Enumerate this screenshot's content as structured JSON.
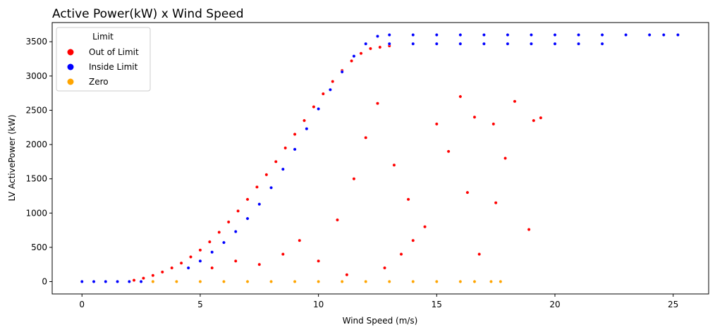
{
  "chart_data": {
    "type": "scatter",
    "title": "Active Power(kW) x Wind Speed",
    "xlabel": "Wind Speed (m/s)",
    "ylabel": "LV ActivePower (kW)",
    "xlim": [
      -1.26,
      26.5
    ],
    "ylim": [
      -180,
      3780
    ],
    "xticks": [
      0,
      5,
      10,
      15,
      20,
      25
    ],
    "yticks": [
      0,
      500,
      1000,
      1500,
      2000,
      2500,
      3000,
      3500
    ],
    "grid": false,
    "legend": {
      "title": "Limit",
      "placement": "top-left",
      "entries": [
        "Out of Limit",
        "Inside Limit",
        "Zero"
      ]
    },
    "series": [
      {
        "name": "Out of Limit",
        "color": "#ff0000",
        "points": [
          [
            2.2,
            20
          ],
          [
            2.6,
            50
          ],
          [
            3.0,
            90
          ],
          [
            3.4,
            140
          ],
          [
            3.8,
            200
          ],
          [
            4.2,
            270
          ],
          [
            4.6,
            360
          ],
          [
            5.0,
            460
          ],
          [
            5.4,
            580
          ],
          [
            5.8,
            720
          ],
          [
            6.2,
            870
          ],
          [
            6.6,
            1030
          ],
          [
            7.0,
            1200
          ],
          [
            7.4,
            1380
          ],
          [
            7.8,
            1560
          ],
          [
            8.2,
            1750
          ],
          [
            8.6,
            1950
          ],
          [
            9.0,
            2150
          ],
          [
            9.4,
            2350
          ],
          [
            9.8,
            2550
          ],
          [
            10.2,
            2740
          ],
          [
            10.6,
            2920
          ],
          [
            11.0,
            3080
          ],
          [
            11.4,
            3220
          ],
          [
            11.8,
            3330
          ],
          [
            12.2,
            3400
          ],
          [
            12.6,
            3420
          ],
          [
            13.0,
            3440
          ],
          [
            5.5,
            200
          ],
          [
            6.5,
            300
          ],
          [
            7.5,
            250
          ],
          [
            8.5,
            400
          ],
          [
            9.2,
            600
          ],
          [
            10.0,
            300
          ],
          [
            10.8,
            900
          ],
          [
            11.5,
            1500
          ],
          [
            12.0,
            2100
          ],
          [
            12.5,
            2600
          ],
          [
            13.2,
            1700
          ],
          [
            13.8,
            1200
          ],
          [
            14.5,
            800
          ],
          [
            15.0,
            2300
          ],
          [
            15.5,
            1900
          ],
          [
            16.0,
            2700
          ],
          [
            16.3,
            1300
          ],
          [
            16.6,
            2400
          ],
          [
            17.4,
            2300
          ],
          [
            17.5,
            1150
          ],
          [
            17.9,
            1800
          ],
          [
            18.3,
            2630
          ],
          [
            18.9,
            760
          ],
          [
            19.1,
            2350
          ],
          [
            19.4,
            2390
          ],
          [
            16.8,
            400
          ],
          [
            14.0,
            600
          ],
          [
            13.5,
            400
          ],
          [
            12.8,
            200
          ],
          [
            11.2,
            100
          ]
        ]
      },
      {
        "name": "Inside Limit",
        "color": "#0000ff",
        "points": [
          [
            0.0,
            0
          ],
          [
            0.5,
            0
          ],
          [
            1.0,
            0
          ],
          [
            1.5,
            0
          ],
          [
            2.0,
            0
          ],
          [
            2.5,
            0
          ],
          [
            3.0,
            0
          ],
          [
            4.5,
            200
          ],
          [
            5.0,
            300
          ],
          [
            5.5,
            430
          ],
          [
            6.0,
            570
          ],
          [
            6.5,
            730
          ],
          [
            7.0,
            920
          ],
          [
            7.5,
            1130
          ],
          [
            8.0,
            1370
          ],
          [
            8.5,
            1640
          ],
          [
            9.0,
            1930
          ],
          [
            9.5,
            2230
          ],
          [
            10.0,
            2520
          ],
          [
            10.5,
            2800
          ],
          [
            11.0,
            3060
          ],
          [
            11.5,
            3290
          ],
          [
            12.0,
            3470
          ],
          [
            12.5,
            3580
          ],
          [
            13.0,
            3600
          ],
          [
            14.0,
            3600
          ],
          [
            15.0,
            3600
          ],
          [
            16.0,
            3600
          ],
          [
            17.0,
            3600
          ],
          [
            18.0,
            3600
          ],
          [
            19.0,
            3600
          ],
          [
            20.0,
            3600
          ],
          [
            21.0,
            3600
          ],
          [
            22.0,
            3600
          ],
          [
            23.0,
            3600
          ],
          [
            24.0,
            3600
          ],
          [
            24.6,
            3600
          ],
          [
            25.2,
            3600
          ],
          [
            13.0,
            3470
          ],
          [
            14.0,
            3470
          ],
          [
            15.0,
            3470
          ],
          [
            16.0,
            3470
          ],
          [
            17.0,
            3470
          ],
          [
            18.0,
            3470
          ],
          [
            19.0,
            3470
          ],
          [
            20.0,
            3470
          ],
          [
            21.0,
            3470
          ],
          [
            22.0,
            3470
          ]
        ]
      },
      {
        "name": "Zero",
        "color": "#ffa500",
        "points": [
          [
            3.0,
            0
          ],
          [
            4.0,
            0
          ],
          [
            5.0,
            0
          ],
          [
            6.0,
            0
          ],
          [
            7.0,
            0
          ],
          [
            8.0,
            0
          ],
          [
            9.0,
            0
          ],
          [
            10.0,
            0
          ],
          [
            11.0,
            0
          ],
          [
            12.0,
            0
          ],
          [
            13.0,
            0
          ],
          [
            14.0,
            0
          ],
          [
            15.0,
            0
          ],
          [
            16.0,
            0
          ],
          [
            16.6,
            0
          ],
          [
            17.3,
            0
          ],
          [
            17.7,
            0
          ]
        ]
      }
    ]
  }
}
